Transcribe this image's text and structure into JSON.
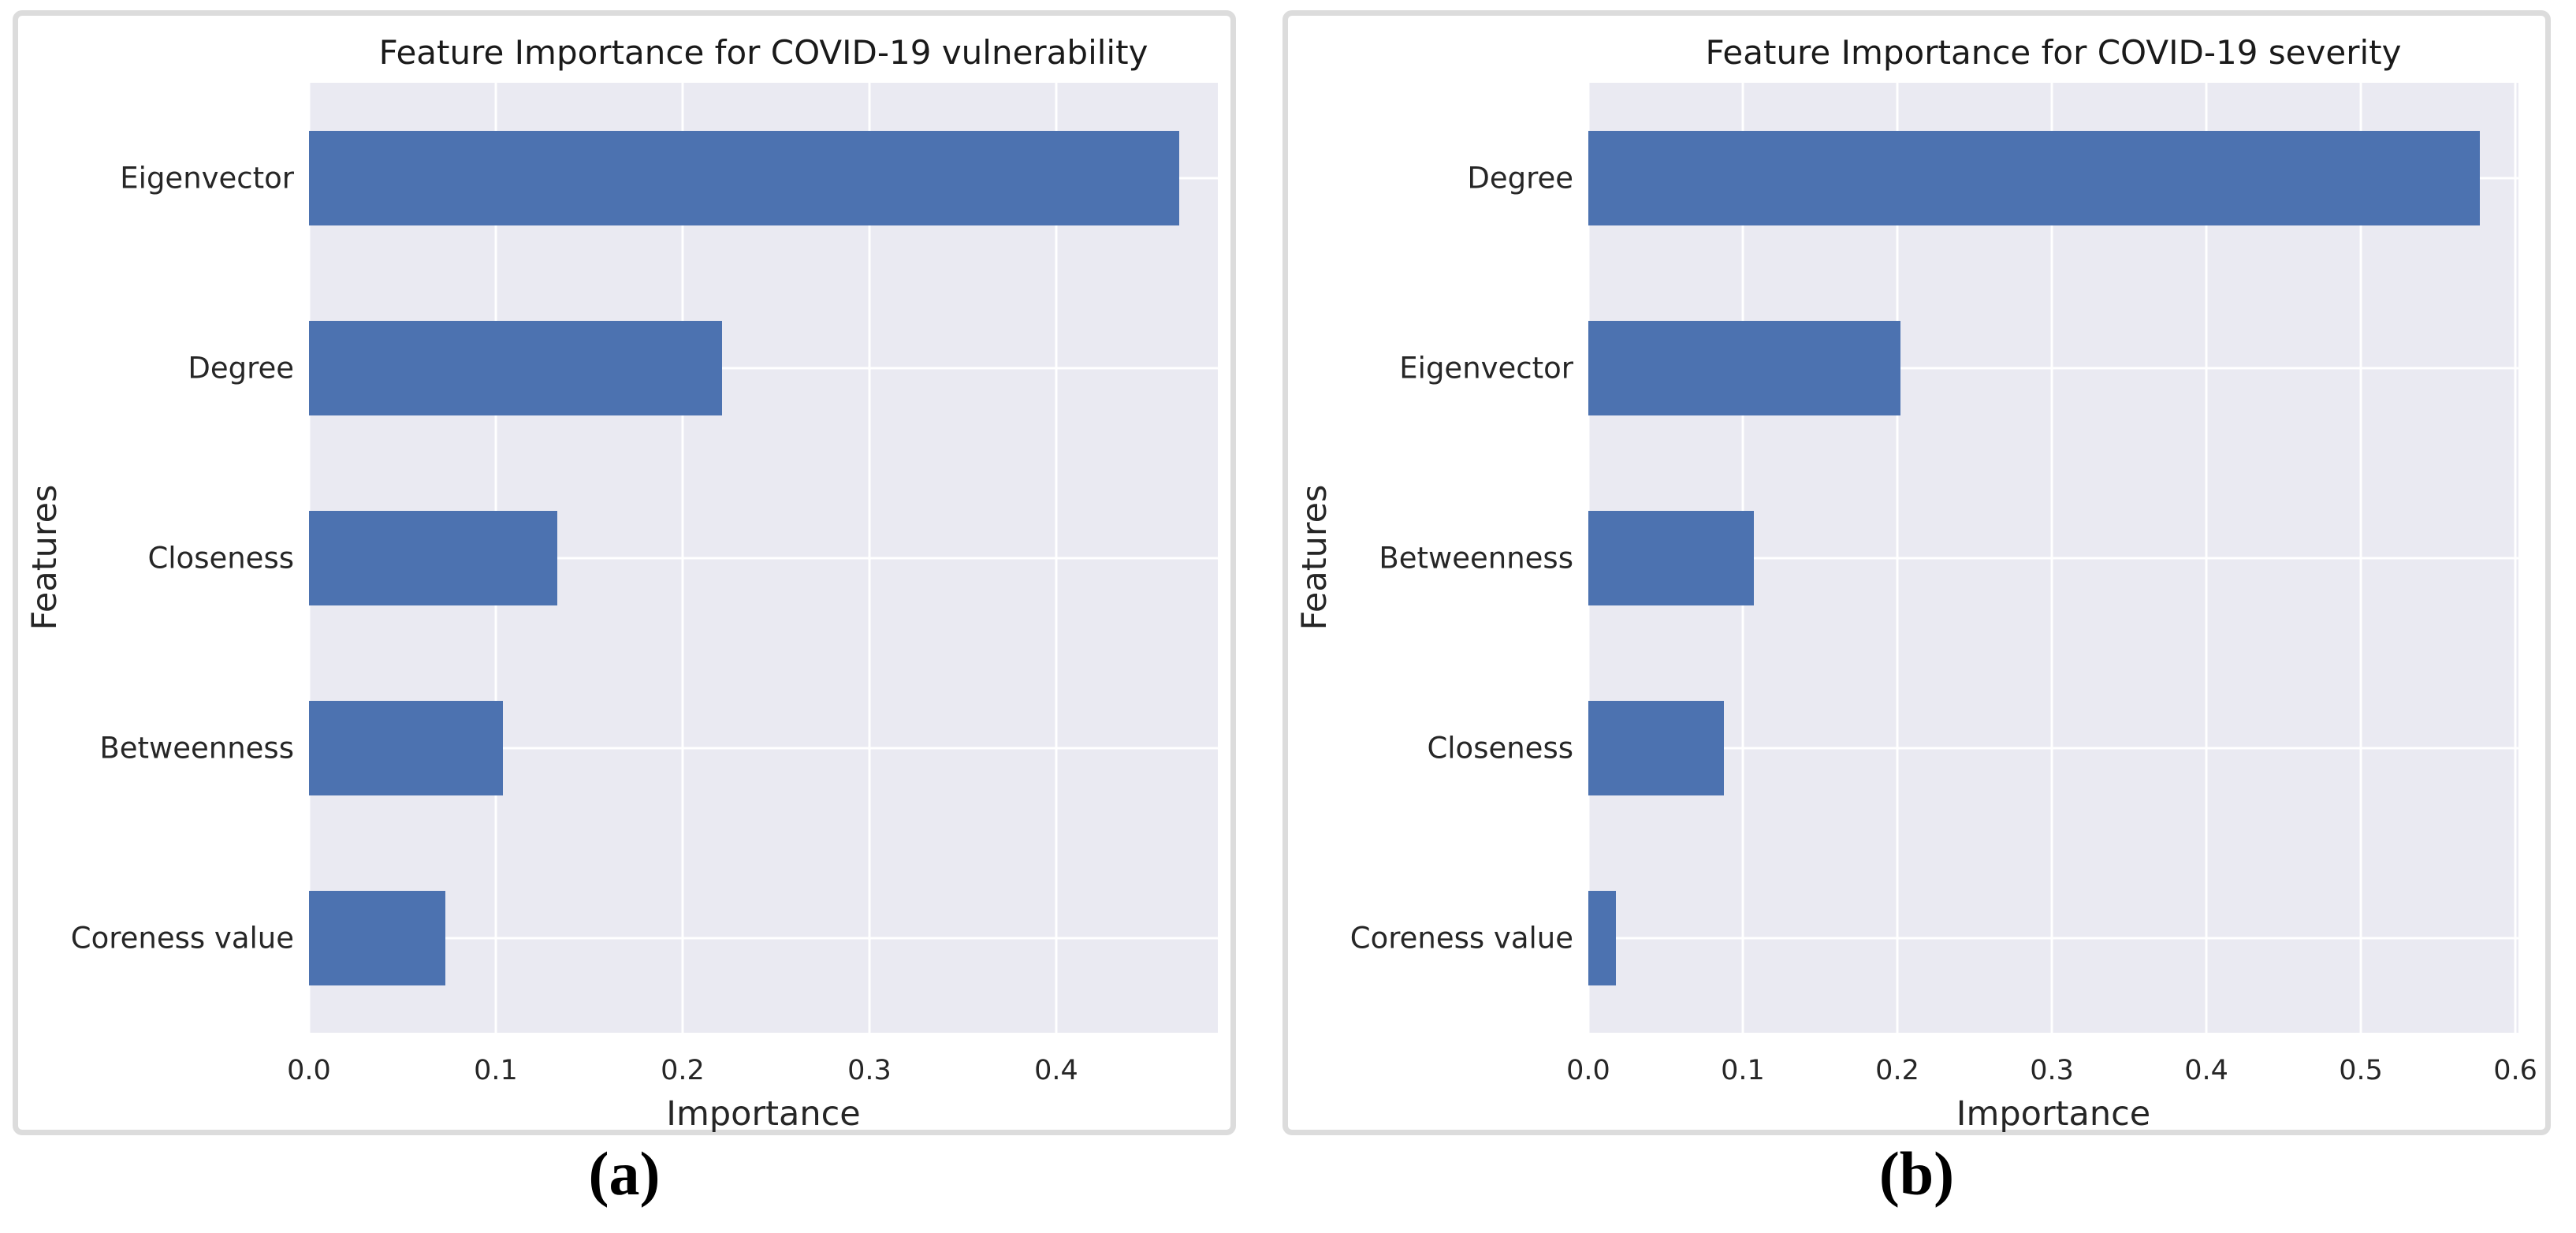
{
  "colors": {
    "bar_blue": "#4c72b0",
    "plot_background": "#eaeaf2",
    "gridline": "#ffffff",
    "panel_border": "#dcdcdc",
    "text": "#262626"
  },
  "captions": {
    "a": "(a)",
    "b": "(b)"
  },
  "chart_data": [
    {
      "type": "bar",
      "orientation": "horizontal",
      "title": "Feature Importance for COVID-19 vulnerability",
      "xlabel": "Importance",
      "ylabel": "Features",
      "categories": [
        "Eigenvector",
        "Degree",
        "Closeness",
        "Betweenness",
        "Coreness value"
      ],
      "values": [
        0.466,
        0.221,
        0.133,
        0.104,
        0.073
      ],
      "xlim": [
        0,
        0.4865
      ],
      "xtick_labels": [
        "0.0",
        "0.1",
        "0.2",
        "0.3",
        "0.4"
      ],
      "grid": true,
      "legend": "none",
      "bar_color": "#4c72b0",
      "caption": "(a)"
    },
    {
      "type": "bar",
      "orientation": "horizontal",
      "title": "Feature Importance for COVID-19 severity",
      "xlabel": "Importance",
      "ylabel": "Features",
      "categories": [
        "Degree",
        "Eigenvector",
        "Betweenness",
        "Closeness",
        "Coreness value"
      ],
      "values": [
        0.577,
        0.202,
        0.107,
        0.088,
        0.018
      ],
      "xlim": [
        0,
        0.602
      ],
      "xtick_labels": [
        "0.0",
        "0.1",
        "0.2",
        "0.3",
        "0.4",
        "0.5",
        "0.6"
      ],
      "grid": true,
      "legend": "none",
      "bar_color": "#4c72b0",
      "caption": "(b)"
    }
  ]
}
